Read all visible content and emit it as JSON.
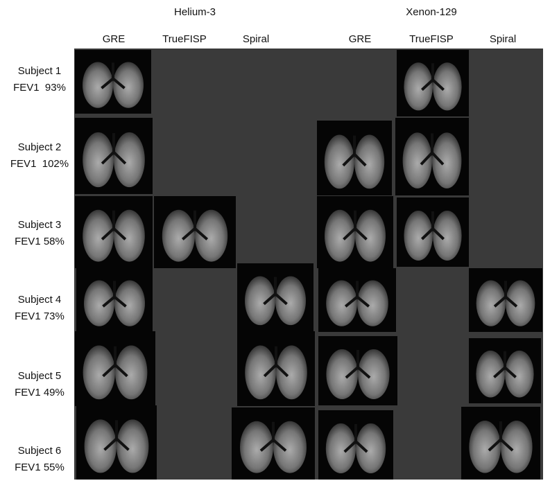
{
  "groups": [
    {
      "label": "Helium-3"
    },
    {
      "label": "Xenon-129"
    }
  ],
  "columns": [
    "GRE",
    "TrueFISP",
    "Spiral",
    "GRE",
    "TrueFISP",
    "Spiral"
  ],
  "rows": [
    {
      "subject": "Subject 1",
      "fev1": "FEV1  93%"
    },
    {
      "subject": "Subject 2",
      "fev1": "FEV1  102%"
    },
    {
      "subject": "Subject 3",
      "fev1": "FEV1 58%"
    },
    {
      "subject": "Subject 4",
      "fev1": "FEV1 73%"
    },
    {
      "subject": "Subject 5",
      "fev1": "FEV1 49%"
    },
    {
      "subject": "Subject 6",
      "fev1": "FEV1 55%"
    }
  ]
}
